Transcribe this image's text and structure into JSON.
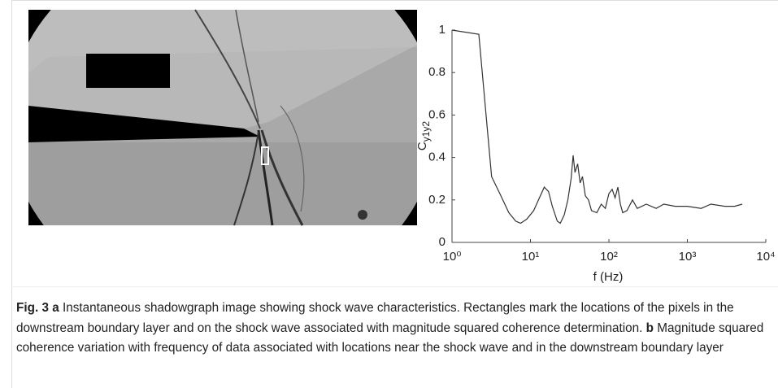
{
  "chart_data": {
    "type": "line",
    "xlabel": "f (Hz)",
    "ylabel": "C",
    "ylabel_subscript": "y1y2",
    "xscale": "log",
    "color": "#333333",
    "x": [
      1,
      2.2,
      3.2,
      4.2,
      5.3,
      6.5,
      7.5,
      9,
      11,
      13,
      15,
      17,
      19,
      22,
      24,
      27,
      30,
      33,
      35,
      37,
      40,
      43,
      46,
      50,
      55,
      60,
      70,
      80,
      90,
      100,
      110,
      120,
      130,
      140,
      150,
      170,
      200,
      230,
      300,
      400,
      500,
      700,
      1000,
      1500,
      2000,
      3000,
      4000,
      5000
    ],
    "values": [
      1,
      0.98,
      0.31,
      0.22,
      0.14,
      0.1,
      0.09,
      0.11,
      0.15,
      0.21,
      0.26,
      0.24,
      0.17,
      0.1,
      0.09,
      0.13,
      0.2,
      0.3,
      0.41,
      0.33,
      0.37,
      0.28,
      0.31,
      0.22,
      0.2,
      0.15,
      0.14,
      0.18,
      0.16,
      0.23,
      0.25,
      0.21,
      0.26,
      0.18,
      0.14,
      0.15,
      0.2,
      0.16,
      0.18,
      0.16,
      0.18,
      0.17,
      0.17,
      0.16,
      0.18,
      0.17,
      0.17,
      0.18
    ],
    "xlim": [
      1,
      10000
    ],
    "xticks": [
      {
        "value": 1,
        "label": "10⁰"
      },
      {
        "value": 10,
        "label": "10¹"
      },
      {
        "value": 100,
        "label": "10²"
      },
      {
        "value": 1000,
        "label": "10³"
      },
      {
        "value": 10000,
        "label": "10⁴"
      }
    ],
    "ylim": [
      0,
      1
    ],
    "yticks": [
      0,
      0.2,
      0.4,
      0.6,
      0.8,
      1
    ]
  },
  "caption": {
    "label": "Fig. 3",
    "parts": [
      {
        "label": "a",
        "text": "Instantaneous shadowgraph image showing shock wave characteristics. Rectangles mark the locations of the pixels in the downstream boundary layer and on the shock wave associated with magnitude squared coherence determination."
      },
      {
        "label": "b",
        "text": "Magnitude squared coherence variation with frequency of data associated with locations near the shock wave and in the downstream boundary layer"
      }
    ]
  }
}
